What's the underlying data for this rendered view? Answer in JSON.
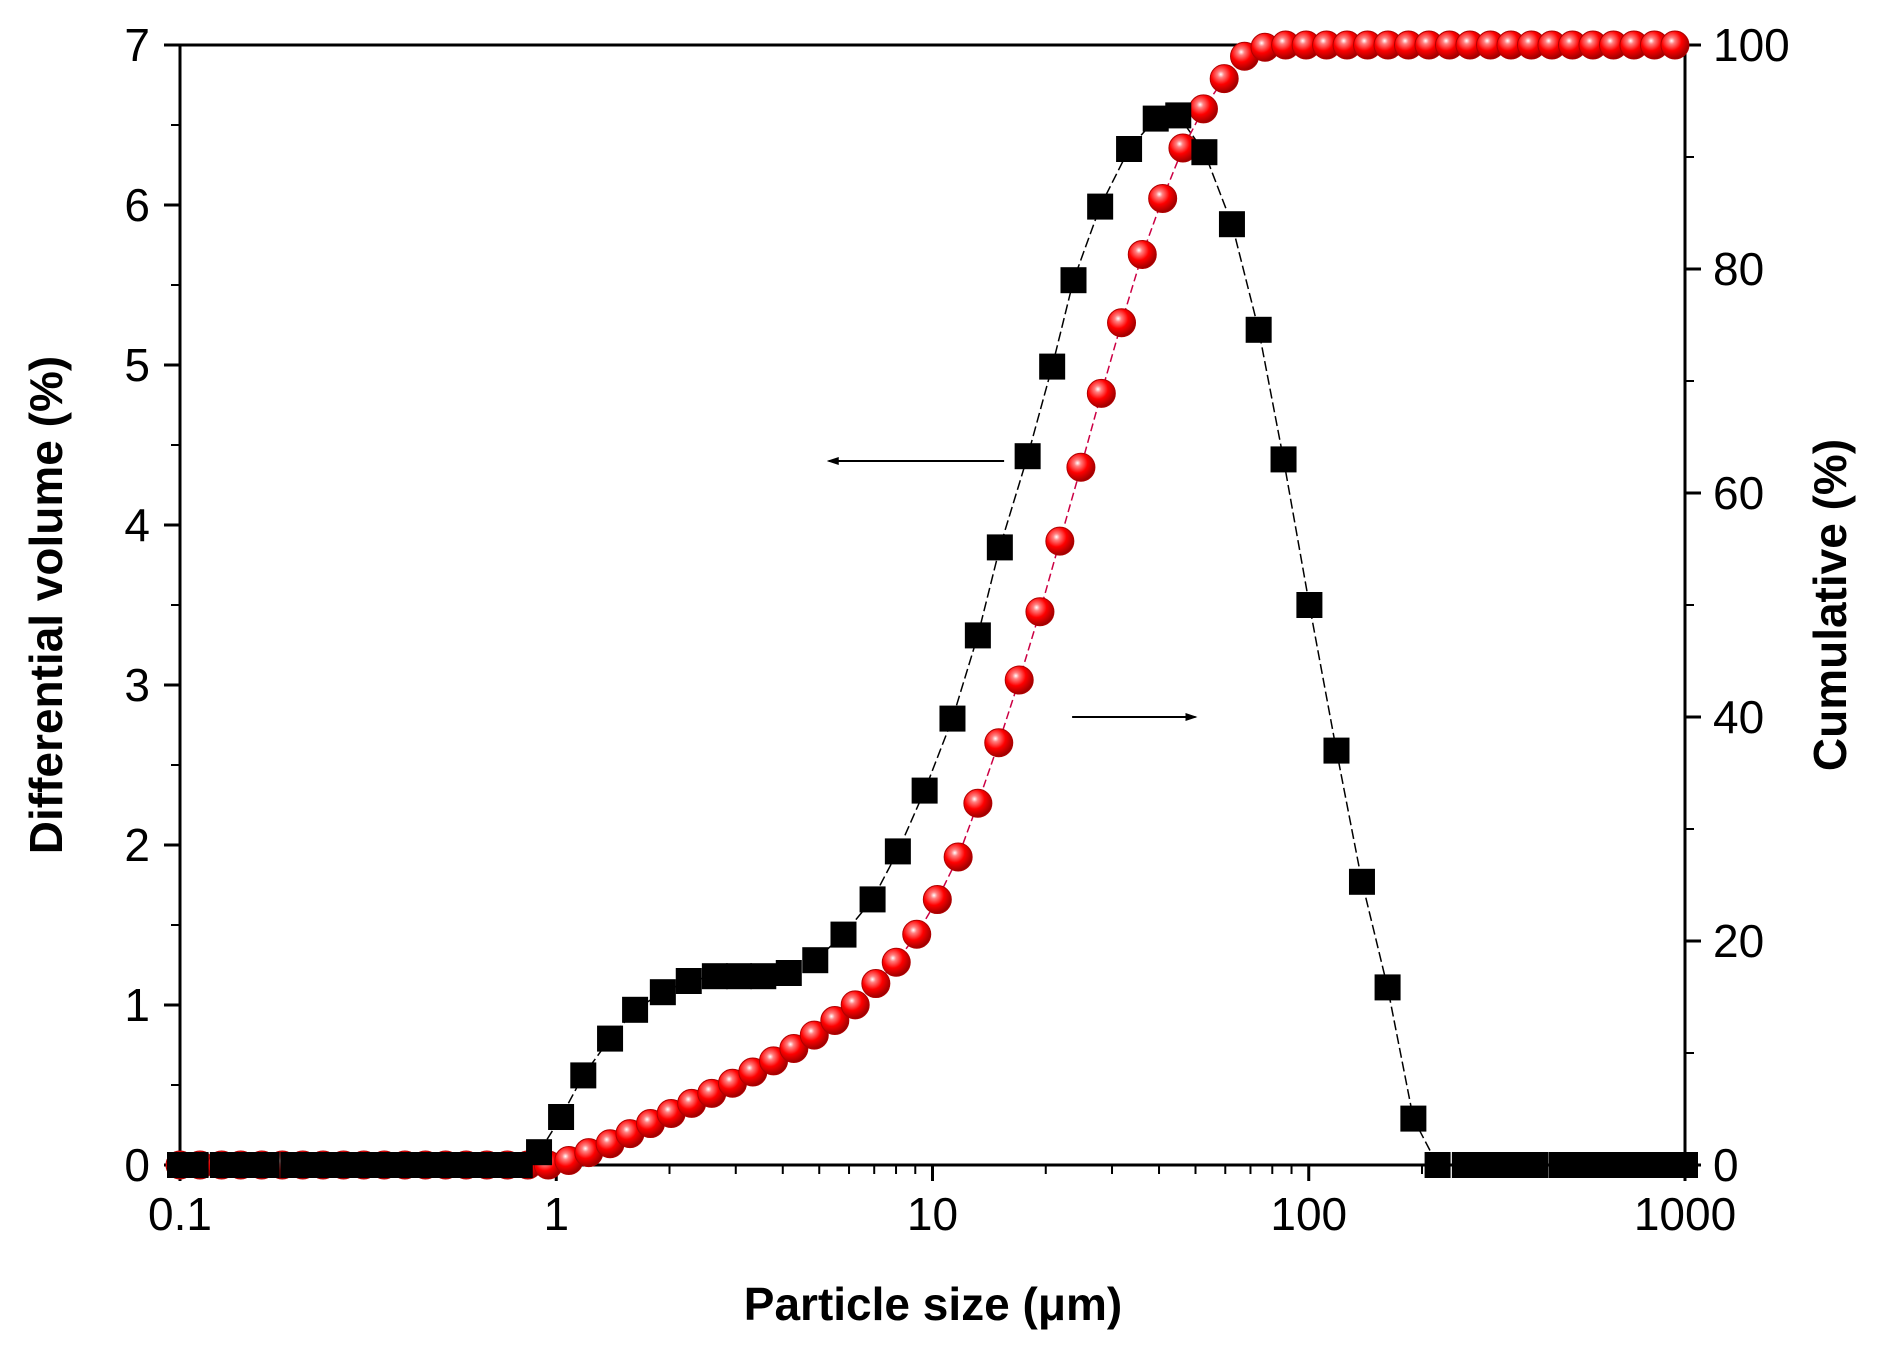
{
  "chart_data": {
    "type": "scatter",
    "title": "",
    "xlabel": "Particle size (μm)",
    "ylabel": "Differential volume (%)",
    "y2label": "Cumulative (%)",
    "xscale": "log",
    "xlim": [
      0.1,
      1000
    ],
    "ylim": [
      0,
      7
    ],
    "y2lim": [
      0,
      100
    ],
    "xticks": [
      "0.1",
      "1",
      "10",
      "100",
      "1000"
    ],
    "yticks": [
      "0",
      "1",
      "2",
      "3",
      "4",
      "5",
      "6",
      "7"
    ],
    "y2ticks": [
      "0",
      "20",
      "40",
      "60",
      "80",
      "100"
    ],
    "grid": false,
    "series": [
      {
        "name": "Differential volume",
        "axis": "left",
        "marker": "square",
        "color": "#000000",
        "x": [
          0.1,
          0.11,
          0.13,
          0.15,
          0.17,
          0.2,
          0.23,
          0.26,
          0.3,
          0.35,
          0.4,
          0.46,
          0.53,
          0.61,
          0.7,
          0.8,
          0.9,
          1.03,
          1.18,
          1.39,
          1.62,
          1.92,
          2.25,
          2.64,
          3.06,
          3.55,
          4.15,
          4.88,
          5.8,
          6.93,
          8.09,
          9.53,
          11.3,
          13.2,
          15.1,
          17.9,
          20.8,
          23.7,
          27.9,
          33.3,
          39.2,
          45.0,
          52.8,
          62.5,
          73.6,
          85.7,
          100.4,
          118.5,
          138.5,
          162.0,
          189.7,
          220,
          260,
          300,
          350,
          400,
          470,
          550,
          640,
          750,
          870,
          1000
        ],
        "values": [
          0,
          0,
          0,
          0,
          0,
          0,
          0,
          0,
          0,
          0,
          0,
          0,
          0,
          0,
          0,
          0,
          0.08,
          0.3,
          0.56,
          0.79,
          0.97,
          1.08,
          1.15,
          1.18,
          1.18,
          1.18,
          1.2,
          1.28,
          1.44,
          1.66,
          1.96,
          2.34,
          2.79,
          3.31,
          3.86,
          4.43,
          4.99,
          5.53,
          5.99,
          6.35,
          6.54,
          6.56,
          6.33,
          5.88,
          5.22,
          4.41,
          3.5,
          2.59,
          1.77,
          1.11,
          0.29,
          0,
          0,
          0,
          0,
          0,
          0,
          0,
          0,
          0,
          0,
          0
        ]
      },
      {
        "name": "Cumulative",
        "axis": "right",
        "marker": "circle",
        "color": "#ff0000",
        "x": [
          0.1,
          0.113,
          0.129,
          0.145,
          0.165,
          0.187,
          0.212,
          0.24,
          0.272,
          0.308,
          0.349,
          0.396,
          0.449,
          0.508,
          0.576,
          0.654,
          0.741,
          0.84,
          0.952,
          1.08,
          1.22,
          1.39,
          1.57,
          1.78,
          2.02,
          2.29,
          2.59,
          2.94,
          3.33,
          3.78,
          4.28,
          4.85,
          5.5,
          6.23,
          7.07,
          8.01,
          9.08,
          10.3,
          11.7,
          13.2,
          15.0,
          17.0,
          19.3,
          21.8,
          24.8,
          28.1,
          31.8,
          36.1,
          40.9,
          46.3,
          52.5,
          59.6,
          67.5,
          76.5,
          86.8,
          98.4,
          111.5,
          126.4,
          143.3,
          162.4,
          184.1,
          208.7,
          236.6,
          268.2,
          304.1,
          344.7,
          390.8,
          443.0,
          502.2,
          569.3,
          645.4,
          731.6,
          829.4,
          940.2
        ],
        "values": [
          0,
          0,
          0,
          0,
          0,
          0,
          0,
          0,
          0,
          0,
          0,
          0,
          0,
          0,
          0,
          0,
          0,
          0,
          0,
          0.4,
          1.1,
          1.9,
          2.8,
          3.7,
          4.6,
          5.5,
          6.4,
          7.3,
          8.3,
          9.3,
          10.4,
          11.6,
          12.9,
          14.3,
          16.2,
          18.1,
          20.6,
          23.7,
          27.5,
          32.3,
          37.7,
          43.3,
          49.4,
          55.7,
          62.3,
          68.9,
          75.2,
          81.3,
          86.3,
          90.8,
          94.3,
          97.0,
          99.0,
          99.8,
          100,
          100,
          100,
          100,
          100,
          100,
          100,
          100,
          100,
          100,
          100,
          100,
          100,
          100,
          100,
          100,
          100,
          100,
          100,
          100
        ]
      }
    ],
    "annotations": [
      {
        "type": "arrow",
        "direction": "left",
        "points_to": "left axis",
        "x_from": 15.5,
        "x_to": 5.3,
        "y": 4.4
      },
      {
        "type": "arrow",
        "direction": "right",
        "points_to": "right axis",
        "x_from": 23.5,
        "x_to": 50,
        "y": 2.8
      }
    ]
  }
}
